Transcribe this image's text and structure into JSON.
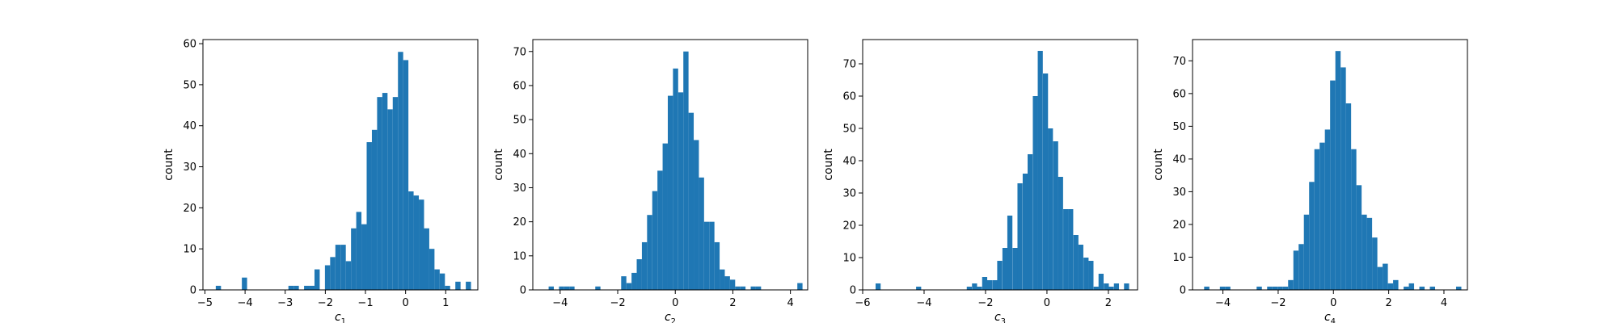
{
  "chart_data": [
    {
      "type": "bar",
      "xlabel": "c",
      "xlabel_sub": "1",
      "ylabel": "count",
      "xlim": [
        -5.05,
        1.8
      ],
      "ylim": [
        0,
        61
      ],
      "xticks": [
        -5,
        -4,
        -3,
        -2,
        -1,
        0,
        1
      ],
      "xtick_labels": [
        "−5",
        "−4",
        "−3",
        "−2",
        "−1",
        "0",
        "1"
      ],
      "yticks": [
        0,
        10,
        20,
        30,
        40,
        50,
        60
      ],
      "ytick_labels": [
        "0",
        "10",
        "20",
        "30",
        "40",
        "50",
        "60"
      ],
      "bin_width": 0.13,
      "bins": [
        [
          -4.73,
          1
        ],
        [
          -4.08,
          3
        ],
        [
          -2.92,
          1
        ],
        [
          -2.79,
          1
        ],
        [
          -2.53,
          1
        ],
        [
          -2.4,
          1
        ],
        [
          -2.27,
          5
        ],
        [
          -2.01,
          6
        ],
        [
          -1.88,
          8
        ],
        [
          -1.75,
          11
        ],
        [
          -1.62,
          11
        ],
        [
          -1.49,
          7
        ],
        [
          -1.36,
          15
        ],
        [
          -1.23,
          19
        ],
        [
          -1.1,
          16
        ],
        [
          -0.97,
          36
        ],
        [
          -0.84,
          39
        ],
        [
          -0.71,
          47
        ],
        [
          -0.58,
          48
        ],
        [
          -0.45,
          44
        ],
        [
          -0.32,
          47
        ],
        [
          -0.19,
          58
        ],
        [
          -0.06,
          56
        ],
        [
          0.07,
          24
        ],
        [
          0.2,
          23
        ],
        [
          0.33,
          22
        ],
        [
          0.46,
          15
        ],
        [
          0.59,
          10
        ],
        [
          0.72,
          5
        ],
        [
          0.85,
          4
        ],
        [
          0.98,
          1
        ],
        [
          1.24,
          2
        ],
        [
          1.5,
          2
        ]
      ]
    },
    {
      "type": "bar",
      "xlabel": "c",
      "xlabel_sub": "2",
      "ylabel": "count",
      "xlim": [
        -4.95,
        4.6
      ],
      "ylim": [
        0,
        73.5
      ],
      "xticks": [
        -4,
        -2,
        0,
        2,
        4
      ],
      "xtick_labels": [
        "−4",
        "−2",
        "0",
        "2",
        "4"
      ],
      "yticks": [
        0,
        10,
        20,
        30,
        40,
        50,
        60,
        70
      ],
      "ytick_labels": [
        "0",
        "10",
        "20",
        "30",
        "40",
        "50",
        "60",
        "70"
      ],
      "bin_width": 0.18,
      "bins": [
        [
          -4.4,
          1
        ],
        [
          -4.04,
          1
        ],
        [
          -3.86,
          1
        ],
        [
          -3.68,
          1
        ],
        [
          -2.78,
          1
        ],
        [
          -1.88,
          4
        ],
        [
          -1.7,
          2
        ],
        [
          -1.52,
          5
        ],
        [
          -1.34,
          9
        ],
        [
          -1.16,
          14
        ],
        [
          -0.98,
          22
        ],
        [
          -0.8,
          29
        ],
        [
          -0.62,
          35
        ],
        [
          -0.44,
          43
        ],
        [
          -0.26,
          57
        ],
        [
          -0.08,
          65
        ],
        [
          0.1,
          58
        ],
        [
          0.28,
          70
        ],
        [
          0.46,
          52
        ],
        [
          0.64,
          44
        ],
        [
          0.82,
          33
        ],
        [
          1.0,
          20
        ],
        [
          1.18,
          20
        ],
        [
          1.36,
          14
        ],
        [
          1.54,
          6
        ],
        [
          1.72,
          4
        ],
        [
          1.9,
          3
        ],
        [
          2.08,
          1
        ],
        [
          2.26,
          1
        ],
        [
          2.62,
          1
        ],
        [
          2.8,
          1
        ],
        [
          4.24,
          2
        ]
      ]
    },
    {
      "type": "bar",
      "xlabel": "c",
      "xlabel_sub": "3",
      "ylabel": "count",
      "xlim": [
        -6.0,
        2.95
      ],
      "ylim": [
        0,
        77.5
      ],
      "xticks": [
        -6,
        -4,
        -2,
        0,
        2
      ],
      "xtick_labels": [
        "−6",
        "−4",
        "−2",
        "0",
        "2"
      ],
      "yticks": [
        0,
        10,
        20,
        30,
        40,
        50,
        60,
        70
      ],
      "ytick_labels": [
        "0",
        "10",
        "20",
        "30",
        "40",
        "50",
        "60",
        "70"
      ],
      "bin_width": 0.165,
      "bins": [
        [
          -5.58,
          2
        ],
        [
          -4.26,
          1
        ],
        [
          -2.61,
          1
        ],
        [
          -2.44,
          2
        ],
        [
          -2.28,
          1
        ],
        [
          -2.11,
          4
        ],
        [
          -1.95,
          3
        ],
        [
          -1.78,
          3
        ],
        [
          -1.62,
          9
        ],
        [
          -1.45,
          13
        ],
        [
          -1.29,
          23
        ],
        [
          -1.12,
          13
        ],
        [
          -0.96,
          33
        ],
        [
          -0.79,
          36
        ],
        [
          -0.63,
          42
        ],
        [
          -0.46,
          60
        ],
        [
          -0.3,
          74
        ],
        [
          -0.13,
          67
        ],
        [
          0.03,
          50
        ],
        [
          0.2,
          46
        ],
        [
          0.36,
          35
        ],
        [
          0.53,
          25
        ],
        [
          0.69,
          25
        ],
        [
          0.86,
          17
        ],
        [
          1.02,
          14
        ],
        [
          1.19,
          10
        ],
        [
          1.35,
          9
        ],
        [
          1.52,
          1
        ],
        [
          1.68,
          5
        ],
        [
          1.85,
          2
        ],
        [
          2.01,
          1
        ],
        [
          2.18,
          2
        ],
        [
          2.51,
          2
        ]
      ]
    },
    {
      "type": "bar",
      "xlabel": "c",
      "xlabel_sub": "4",
      "ylabel": "count",
      "xlim": [
        -5.1,
        4.85
      ],
      "ylim": [
        0,
        76.5
      ],
      "xticks": [
        -4,
        -2,
        0,
        2,
        4
      ],
      "xtick_labels": [
        "−4",
        "−2",
        "0",
        "2",
        "4"
      ],
      "yticks": [
        0,
        10,
        20,
        30,
        40,
        50,
        60,
        70
      ],
      "ytick_labels": [
        "0",
        "10",
        "20",
        "30",
        "40",
        "50",
        "60",
        "70"
      ],
      "bin_width": 0.19,
      "bins": [
        [
          -4.68,
          1
        ],
        [
          -4.11,
          1
        ],
        [
          -3.92,
          1
        ],
        [
          -2.78,
          1
        ],
        [
          -2.4,
          1
        ],
        [
          -2.21,
          1
        ],
        [
          -2.02,
          1
        ],
        [
          -1.83,
          1
        ],
        [
          -1.64,
          3
        ],
        [
          -1.45,
          12
        ],
        [
          -1.26,
          14
        ],
        [
          -1.07,
          23
        ],
        [
          -0.88,
          33
        ],
        [
          -0.69,
          43
        ],
        [
          -0.5,
          45
        ],
        [
          -0.31,
          49
        ],
        [
          -0.12,
          64
        ],
        [
          0.07,
          73
        ],
        [
          0.26,
          68
        ],
        [
          0.45,
          57
        ],
        [
          0.64,
          43
        ],
        [
          0.83,
          32
        ],
        [
          1.02,
          23
        ],
        [
          1.21,
          22
        ],
        [
          1.4,
          16
        ],
        [
          1.59,
          7
        ],
        [
          1.78,
          8
        ],
        [
          1.97,
          2
        ],
        [
          2.16,
          3
        ],
        [
          2.54,
          1
        ],
        [
          2.73,
          2
        ],
        [
          3.11,
          1
        ],
        [
          3.49,
          1
        ],
        [
          4.44,
          1
        ]
      ]
    }
  ],
  "style": {
    "bar_color": "#1f77b4",
    "axis_color": "#000000"
  }
}
